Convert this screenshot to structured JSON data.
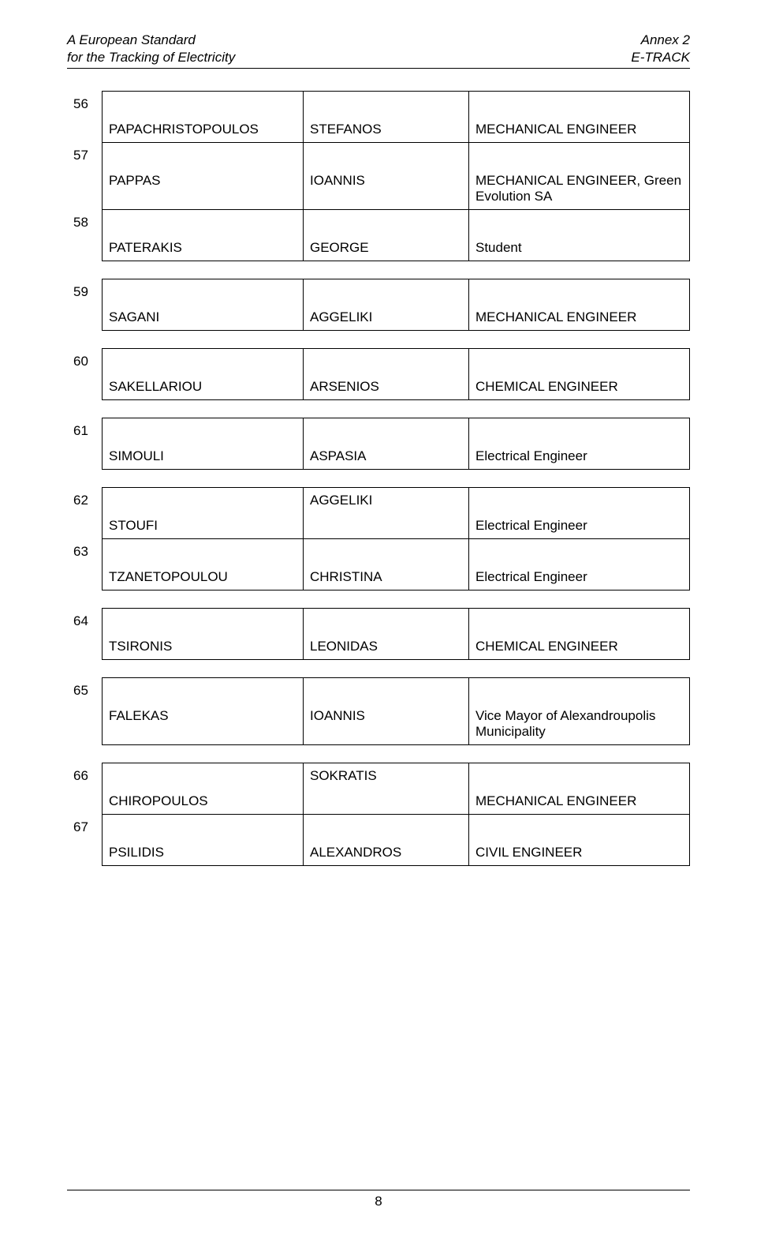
{
  "header": {
    "left_line1": "A European Standard",
    "left_line2": "for the Tracking of Electricity",
    "right_line1": "Annex 2",
    "right_line2": "E-TRACK"
  },
  "blocks": [
    {
      "rows": [
        {
          "num": "56",
          "c1": "PAPACHRISTOPOULOS",
          "c2": "STEFANOS",
          "c3": "MECHANICAL ENGINEER"
        },
        {
          "num": "57",
          "c1": "PAPPAS",
          "c2": "IOANNIS",
          "c3": "MECHANICAL ENGINEER, Green Evolution SA"
        },
        {
          "num": "58",
          "c1": "PATERAKIS",
          "c2": "GEORGE",
          "c3": "Student"
        }
      ]
    },
    {
      "rows": [
        {
          "num": "59",
          "c1": "SAGANI",
          "c2": "AGGELIKI",
          "c3": "MECHANICAL ENGINEER"
        }
      ]
    },
    {
      "rows": [
        {
          "num": "60",
          "c1": "SAKELLARIOU",
          "c2": "ARSENIOS",
          "c3": "CHEMICAL ENGINEER"
        }
      ]
    },
    {
      "rows": [
        {
          "num": "61",
          "c1": "SIMOULI",
          "c2": "ASPASIA",
          "c3": "Electrical Engineer"
        }
      ]
    },
    {
      "rows": [
        {
          "num": "62",
          "c1": "STOUFI",
          "c2": "AGGELIKI",
          "c3": "Electrical Engineer",
          "c2_top": true
        },
        {
          "num": "63",
          "c1": "TZANETOPOULOU",
          "c2": "CHRISTINA",
          "c3": "Electrical Engineer"
        }
      ]
    },
    {
      "rows": [
        {
          "num": "64",
          "c1": "TSIRONIS",
          "c2": "LEONIDAS",
          "c3": "CHEMICAL ENGINEER"
        }
      ]
    },
    {
      "rows": [
        {
          "num": "65",
          "c1": "FALEKAS",
          "c2": "IOANNIS",
          "c3": "Vice Mayor of Alexandroupolis Municipality"
        }
      ]
    },
    {
      "rows": [
        {
          "num": "66",
          "c1": "CHIROPOULOS",
          "c2": "SOKRATIS",
          "c3": "MECHANICAL ENGINEER",
          "c2_top": true
        },
        {
          "num": "67",
          "c1": "PSILIDIS",
          "c2": "ALEXANDROS",
          "c3": "CIVIL ENGINEER"
        }
      ]
    }
  ],
  "footer": {
    "page_number": "8"
  }
}
